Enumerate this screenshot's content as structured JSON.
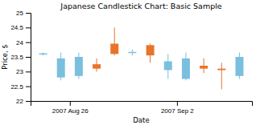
{
  "chart_data": {
    "type": "candlestick",
    "title": "Japanese Candlestick Chart: Basic Sample",
    "xlabel": "Date",
    "ylabel": "Price, $",
    "x": [
      0,
      1,
      2,
      3,
      4,
      5,
      6,
      7,
      8,
      9,
      10,
      11
    ],
    "open": [
      23.6,
      23.45,
      23.5,
      23.25,
      23.6,
      23.65,
      23.55,
      23.35,
      23.45,
      23.2,
      23.1,
      23.5
    ],
    "close": [
      23.6,
      22.8,
      22.85,
      23.1,
      23.95,
      23.65,
      23.9,
      23.05,
      22.75,
      23.1,
      23.05,
      22.85
    ],
    "high": [
      23.65,
      23.65,
      23.65,
      23.45,
      24.5,
      23.75,
      23.95,
      23.6,
      23.65,
      23.45,
      23.3,
      23.65
    ],
    "low": [
      23.55,
      22.7,
      22.75,
      23.0,
      23.55,
      23.55,
      23.3,
      22.75,
      22.7,
      22.95,
      22.4,
      22.75
    ],
    "colors": [
      "#7bbfdf",
      "#7bbfdf",
      "#7bbfdf",
      "#e8742a",
      "#e8742a",
      "#7bbfdf",
      "#e8742a",
      "#7bbfdf",
      "#7bbfdf",
      "#e8742a",
      "#e8742a",
      "#7bbfdf"
    ],
    "xlim": [
      -0.7,
      11.7
    ],
    "xticks": [
      {
        "value": 1.5,
        "label": "2007 Aug 26"
      },
      {
        "value": 7.5,
        "label": "2007 Sep 2"
      }
    ],
    "ylim": [
      22,
      25
    ],
    "yticks": [
      22,
      22.5,
      23,
      23.5,
      24,
      24.5,
      25
    ],
    "grid": false
  }
}
